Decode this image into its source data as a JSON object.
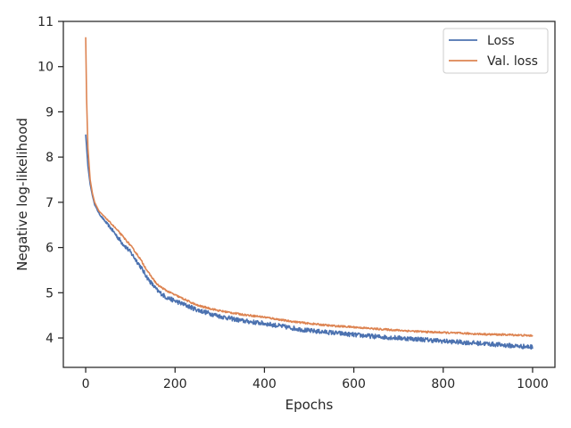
{
  "chart_data": {
    "type": "line",
    "title": "",
    "xlabel": "Epochs",
    "ylabel": "Negative log-likelihood",
    "xlim": [
      -50,
      1050
    ],
    "ylim": [
      3.35,
      11.0
    ],
    "x_ticks": [
      0,
      200,
      400,
      600,
      800,
      1000
    ],
    "y_ticks": [
      4,
      5,
      6,
      7,
      8,
      9,
      10,
      11
    ],
    "grid": false,
    "legend_position": "top-right",
    "series": [
      {
        "name": "Loss",
        "color": "#4c72b0",
        "x": [
          0,
          5,
          10,
          15,
          20,
          25,
          30,
          40,
          50,
          60,
          80,
          100,
          120,
          140,
          160,
          180,
          200,
          250,
          300,
          350,
          400,
          450,
          500,
          550,
          600,
          650,
          700,
          750,
          800,
          850,
          900,
          950,
          1000
        ],
        "values": [
          8.5,
          7.8,
          7.4,
          7.15,
          6.95,
          6.85,
          6.75,
          6.62,
          6.5,
          6.38,
          6.12,
          5.9,
          5.62,
          5.3,
          5.05,
          4.9,
          4.82,
          4.62,
          4.48,
          4.38,
          4.32,
          4.24,
          4.16,
          4.12,
          4.07,
          4.03,
          4.0,
          3.97,
          3.93,
          3.9,
          3.87,
          3.83,
          3.8
        ]
      },
      {
        "name": "Val. loss",
        "color": "#dd8452",
        "x": [
          0,
          2,
          5,
          10,
          15,
          20,
          25,
          30,
          40,
          50,
          60,
          80,
          100,
          120,
          140,
          160,
          180,
          200,
          250,
          300,
          350,
          400,
          450,
          500,
          550,
          600,
          650,
          700,
          750,
          800,
          850,
          900,
          950,
          1000
        ],
        "values": [
          10.65,
          9.3,
          8.2,
          7.5,
          7.2,
          7.0,
          6.9,
          6.8,
          6.7,
          6.6,
          6.5,
          6.28,
          6.05,
          5.78,
          5.45,
          5.18,
          5.05,
          4.95,
          4.72,
          4.6,
          4.52,
          4.46,
          4.38,
          4.32,
          4.27,
          4.24,
          4.2,
          4.17,
          4.14,
          4.12,
          4.1,
          4.08,
          4.07,
          4.05
        ]
      }
    ]
  }
}
